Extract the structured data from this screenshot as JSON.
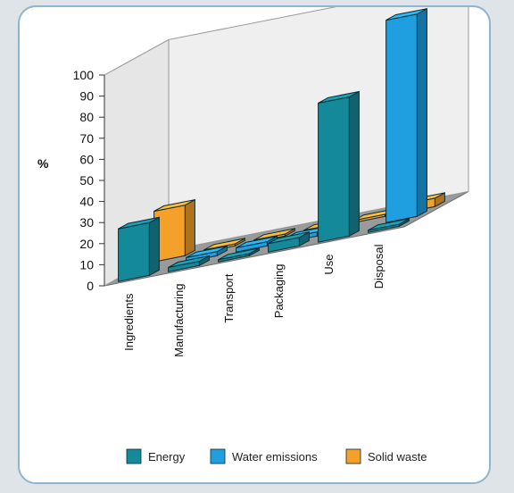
{
  "chart_data": {
    "type": "bar",
    "subtype": "3d-grouped",
    "title": "",
    "xlabel": "",
    "ylabel": "%",
    "ylim": [
      0,
      100
    ],
    "yticks": [
      0,
      10,
      20,
      30,
      40,
      50,
      60,
      70,
      80,
      90,
      100
    ],
    "categories": [
      "Ingredients",
      "Manufacturing",
      "Transport",
      "Packaging",
      "Use",
      "Disposal"
    ],
    "series": [
      {
        "name": "Energy",
        "values": [
          25,
          2,
          1,
          4,
          66,
          1
        ]
      },
      {
        "name": "Water emissions",
        "values": [
          0,
          2,
          2,
          2,
          0,
          96
        ]
      },
      {
        "name": "Solid waste",
        "values": [
          24,
          1,
          1,
          1,
          1,
          4
        ]
      }
    ],
    "legend_position": "bottom",
    "grid": false,
    "colors": {
      "Energy": "#14899a",
      "Water emissions": "#1f9fe0",
      "Solid waste": "#f5a028"
    }
  }
}
